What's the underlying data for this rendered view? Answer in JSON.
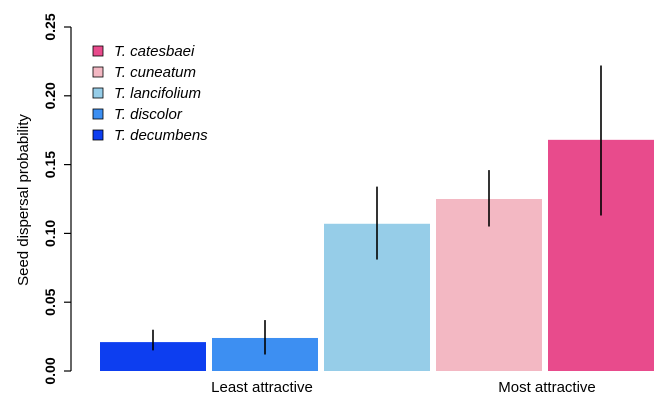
{
  "chart_data": {
    "type": "bar",
    "ylabel": "Seed dispersal probability",
    "xlabel": "",
    "ylim": [
      0,
      0.25
    ],
    "yticks": [
      "0.00",
      "0.05",
      "0.10",
      "0.15",
      "0.20",
      "0.25"
    ],
    "category_labels": [
      "Least attractive",
      "Most attractive"
    ],
    "grid": false,
    "legend_position": "top-left",
    "bars": [
      {
        "species": "T. decumbens",
        "value": 0.021,
        "err_low": 0.015,
        "err_high": 0.03,
        "color": "#0d3ef0"
      },
      {
        "species": "T. discolor",
        "value": 0.024,
        "err_low": 0.012,
        "err_high": 0.037,
        "color": "#3d8ff2"
      },
      {
        "species": "T. lancifolium",
        "value": 0.107,
        "err_low": 0.081,
        "err_high": 0.134,
        "color": "#96cde8"
      },
      {
        "species": "T. cuneatum",
        "value": 0.125,
        "err_low": 0.105,
        "err_high": 0.146,
        "color": "#f3b8c3"
      },
      {
        "species": "T. catesbaei",
        "value": 0.168,
        "err_low": 0.113,
        "err_high": 0.222,
        "color": "#e84b8c"
      }
    ],
    "legend": [
      {
        "label": "T. catesbaei",
        "color": "#e84b8c"
      },
      {
        "label": "T. cuneatum",
        "color": "#f3b8c3"
      },
      {
        "label": "T. lancifolium",
        "color": "#96cde8"
      },
      {
        "label": "T. discolor",
        "color": "#3d8ff2"
      },
      {
        "label": "T. decumbens",
        "color": "#0d3ef0"
      }
    ]
  }
}
